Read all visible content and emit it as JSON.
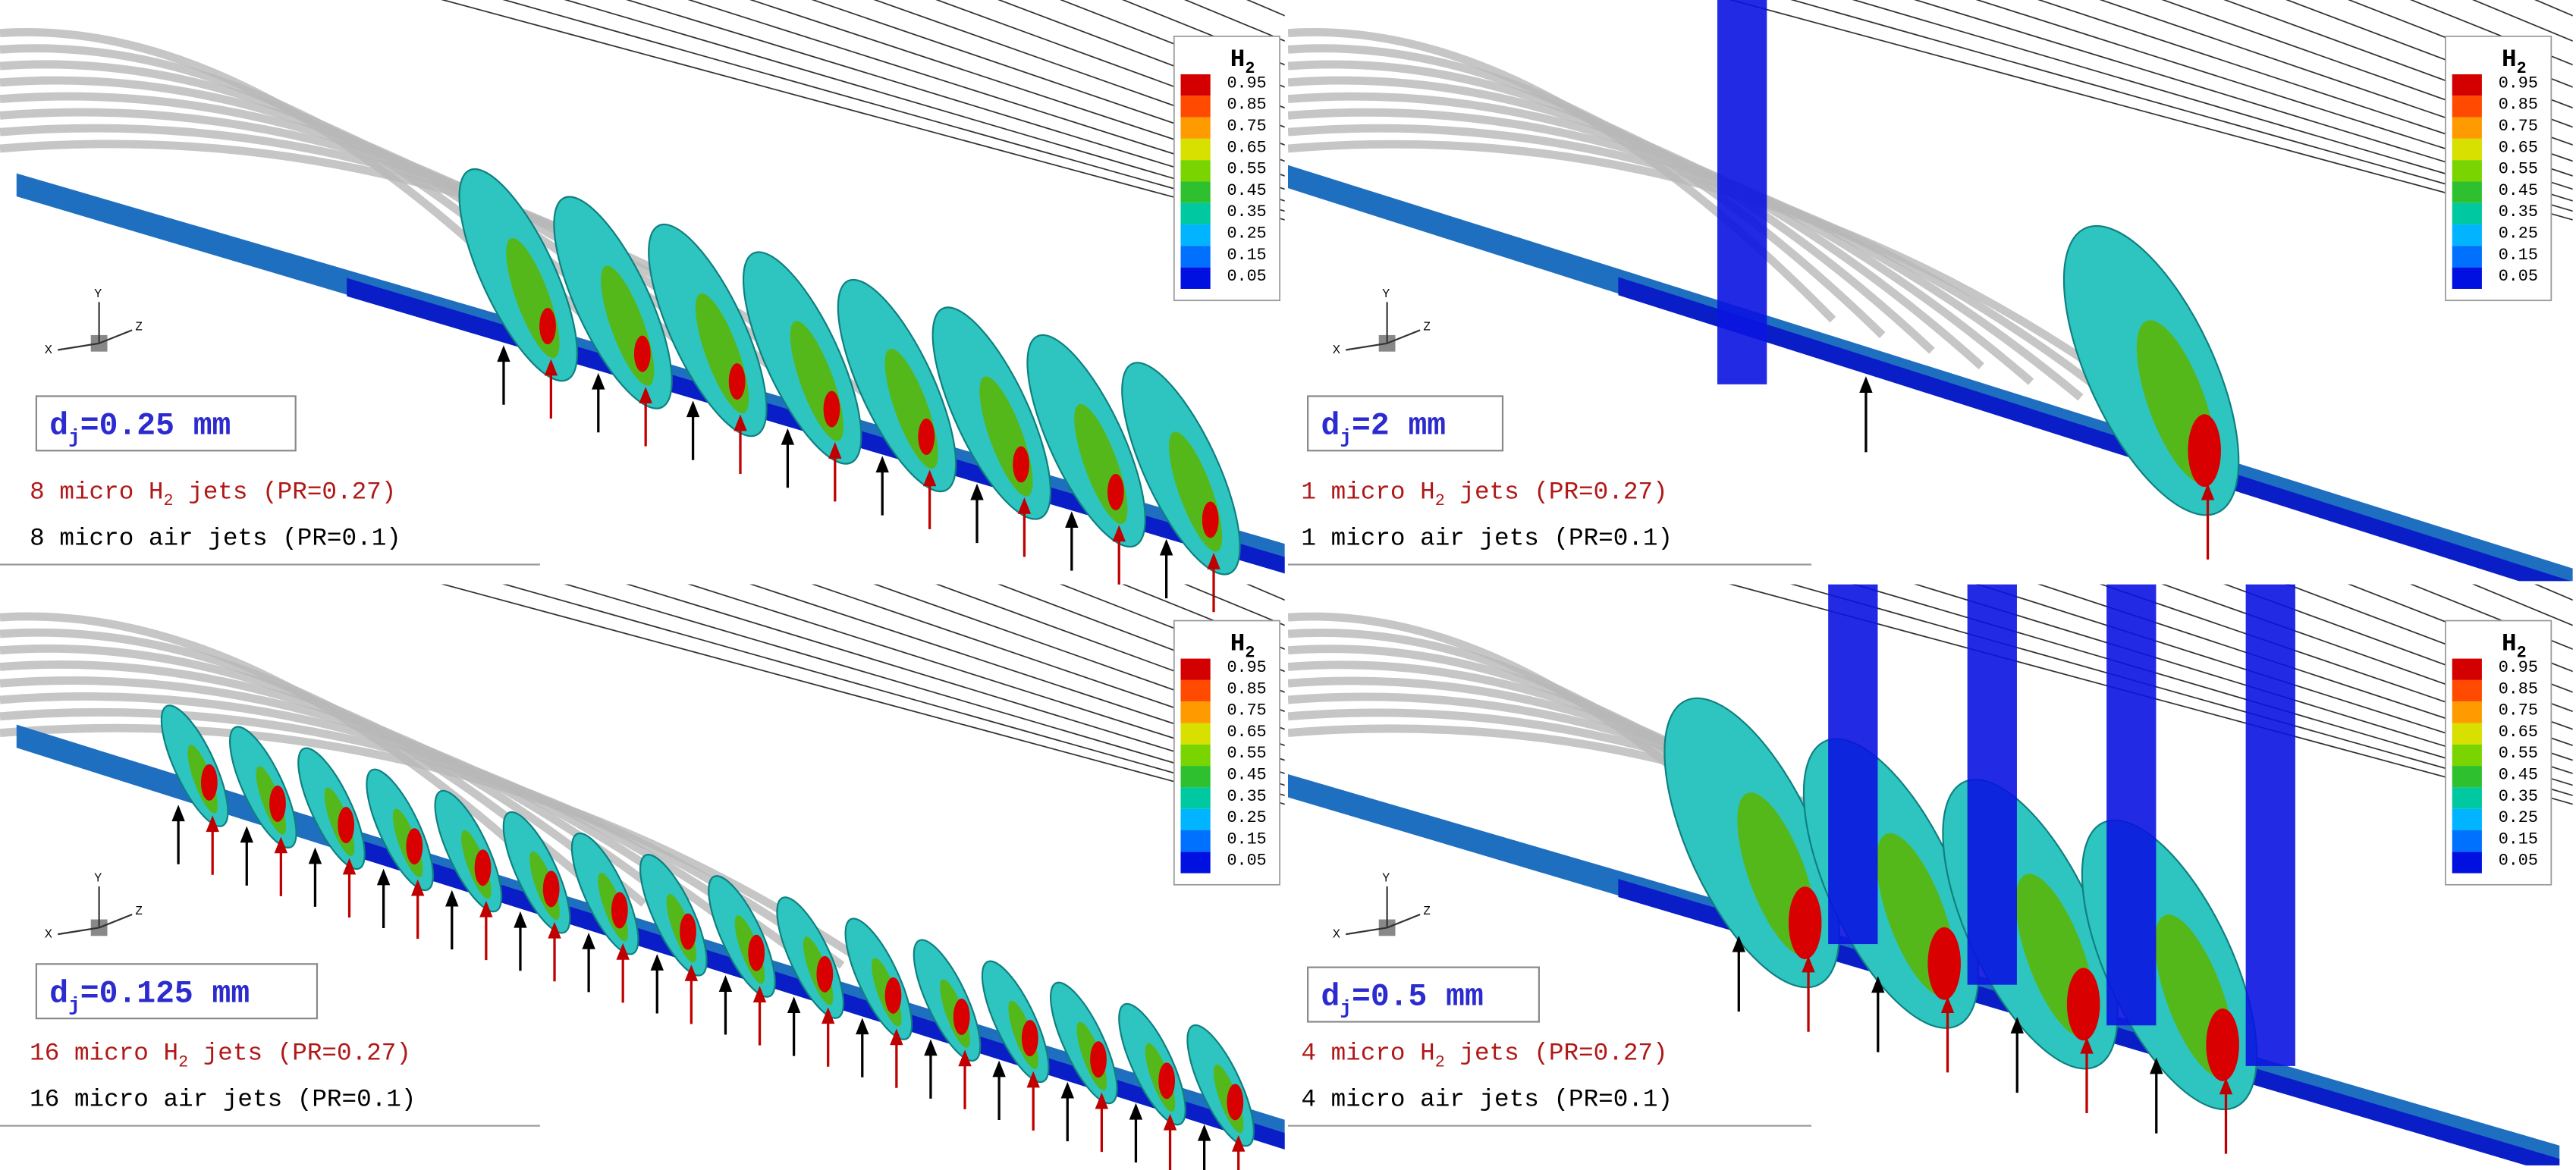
{
  "panels": [
    {
      "diameter": {
        "symbol": "d",
        "subscript": "j",
        "text": "=0.25 mm"
      },
      "h2_jets": {
        "pre": "8 micro H",
        "sub": "2",
        "post": " jets (PR=0.27)"
      },
      "air_jets": "8 micro air jets (PR=0.1)",
      "colorbar": {
        "title": "H",
        "title_sub": "2",
        "ticks": [
          0.95,
          0.85,
          0.75,
          0.65,
          0.55,
          0.45,
          0.35,
          0.25,
          0.15,
          0.05
        ]
      },
      "axes": {
        "x": "X",
        "y": "Y",
        "z": "Z"
      }
    },
    {
      "diameter": {
        "symbol": "d",
        "subscript": "j",
        "text": "=2 mm"
      },
      "h2_jets": {
        "pre": "1 micro H",
        "sub": "2",
        "post": " jets (PR=0.27)"
      },
      "air_jets": "1 micro air jets (PR=0.1)",
      "colorbar": {
        "title": "H",
        "title_sub": "2",
        "ticks": [
          0.95,
          0.85,
          0.75,
          0.65,
          0.55,
          0.45,
          0.35,
          0.25,
          0.15,
          0.05
        ]
      },
      "axes": {
        "x": "X",
        "y": "Y",
        "z": "Z"
      }
    },
    {
      "diameter": {
        "symbol": "d",
        "subscript": "j",
        "text": "=0.125 mm"
      },
      "h2_jets": {
        "pre": "16 micro H",
        "sub": "2",
        "post": " jets (PR=0.27)"
      },
      "air_jets": "16 micro air jets (PR=0.1)",
      "colorbar": {
        "title": "H",
        "title_sub": "2",
        "ticks": [
          0.95,
          0.85,
          0.75,
          0.65,
          0.55,
          0.45,
          0.35,
          0.25,
          0.15,
          0.05
        ]
      },
      "axes": {
        "x": "X",
        "y": "Y",
        "z": "Z"
      }
    },
    {
      "diameter": {
        "symbol": "d",
        "subscript": "j",
        "text": "=0.5 mm"
      },
      "h2_jets": {
        "pre": "4 micro H",
        "sub": "2",
        "post": " jets (PR=0.27)"
      },
      "air_jets": "4 micro air jets (PR=0.1)",
      "colorbar": {
        "title": "H",
        "title_sub": "2",
        "ticks": [
          0.95,
          0.85,
          0.75,
          0.65,
          0.55,
          0.45,
          0.35,
          0.25,
          0.15,
          0.05
        ]
      },
      "axes": {
        "x": "X",
        "y": "Y",
        "z": "Z"
      }
    }
  ]
}
